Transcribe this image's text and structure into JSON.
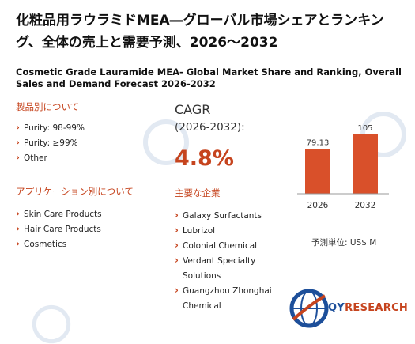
{
  "title_ja": "化粧品用ラウラミドMEA―グローバル市場シェアとランキング、全体の売上と需要予測、2026～2032",
  "title_en": "Cosmetic Grade Lauramide MEA- Global Market Share and Ranking, Overall Sales and Demand Forecast 2026-2032",
  "product_section": {
    "heading": "製品別について",
    "items": [
      "Purity: 98-99%",
      "Purity: ≥99%",
      "Other"
    ]
  },
  "application_section": {
    "heading": "アプリケーション別について",
    "items": [
      "Skin Care Products",
      "Hair Care Products",
      "Cosmetics"
    ]
  },
  "cagr": {
    "label": "CAGR",
    "period": "(2026-2032):",
    "value": "4.8%"
  },
  "companies_section": {
    "heading": "主要な企業",
    "items": [
      "Galaxy Surfactants",
      "Lubrizol",
      "Colonial Chemical",
      "Verdant Specialty Solutions",
      "Guangzhou Zhonghai Chemical"
    ]
  },
  "chart_data": {
    "type": "bar",
    "categories": [
      "2026",
      "2032"
    ],
    "values": [
      79.13,
      105
    ],
    "value_labels": [
      "79.13",
      "105"
    ],
    "unit_label": "予測単位: US$ M",
    "ylim": [
      0,
      105
    ],
    "grid": false,
    "bar_color": "#d9502a"
  },
  "logo": {
    "text_main": "QY",
    "text_accent": "RESEARCH"
  },
  "colors": {
    "accent": "#c6441e",
    "bar": "#d9502a",
    "brand_blue": "#1d4f9a"
  }
}
